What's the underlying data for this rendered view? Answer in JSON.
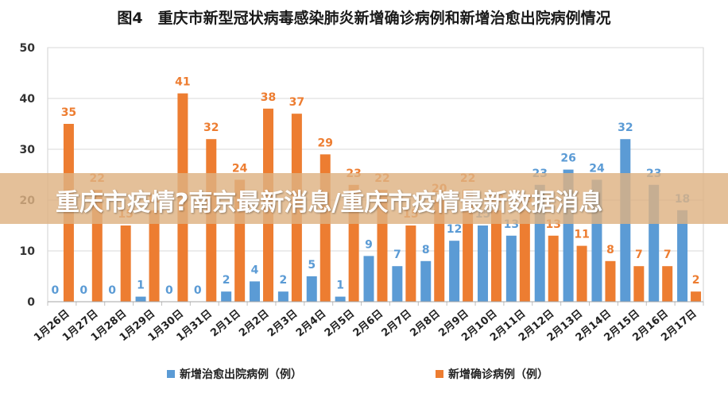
{
  "chart_data": {
    "type": "bar",
    "title": "图4　重庆市新型冠状病毒感染肺炎新增确诊病例和新增治愈出院病例情况",
    "categories": [
      "1月26日",
      "1月27日",
      "1月28日",
      "1月29日",
      "1月30日",
      "1月31日",
      "2月1日",
      "2月2日",
      "2月3日",
      "2月4日",
      "2月5日",
      "2月6日",
      "2月7日",
      "2月8日",
      "2月9日",
      "2月10日",
      "2月11日",
      "2月12日",
      "2月13日",
      "2月14日",
      "2月15日",
      "2月16日",
      "2月17日"
    ],
    "series": [
      {
        "name": "新增治愈出院病例（例）",
        "color": "#5b9bd5",
        "values": [
          0,
          0,
          0,
          1,
          0,
          0,
          2,
          4,
          2,
          5,
          1,
          9,
          7,
          8,
          12,
          15,
          13,
          23,
          26,
          24,
          32,
          23,
          18
        ]
      },
      {
        "name": "新增确诊病例（例）",
        "color": "#ed7d31",
        "values": [
          35,
          22,
          15,
          18,
          41,
          32,
          24,
          38,
          37,
          29,
          23,
          22,
          15,
          20,
          22,
          18,
          18,
          13,
          11,
          8,
          7,
          7,
          2
        ]
      }
    ],
    "yticks": [
      0,
      10,
      20,
      30,
      40,
      50
    ],
    "ylim": [
      0,
      50
    ],
    "grid": true,
    "legend": "bottom"
  },
  "banner": {
    "text": "重庆市疫情?南京最新消息/重庆市疫情最新数据消息"
  }
}
